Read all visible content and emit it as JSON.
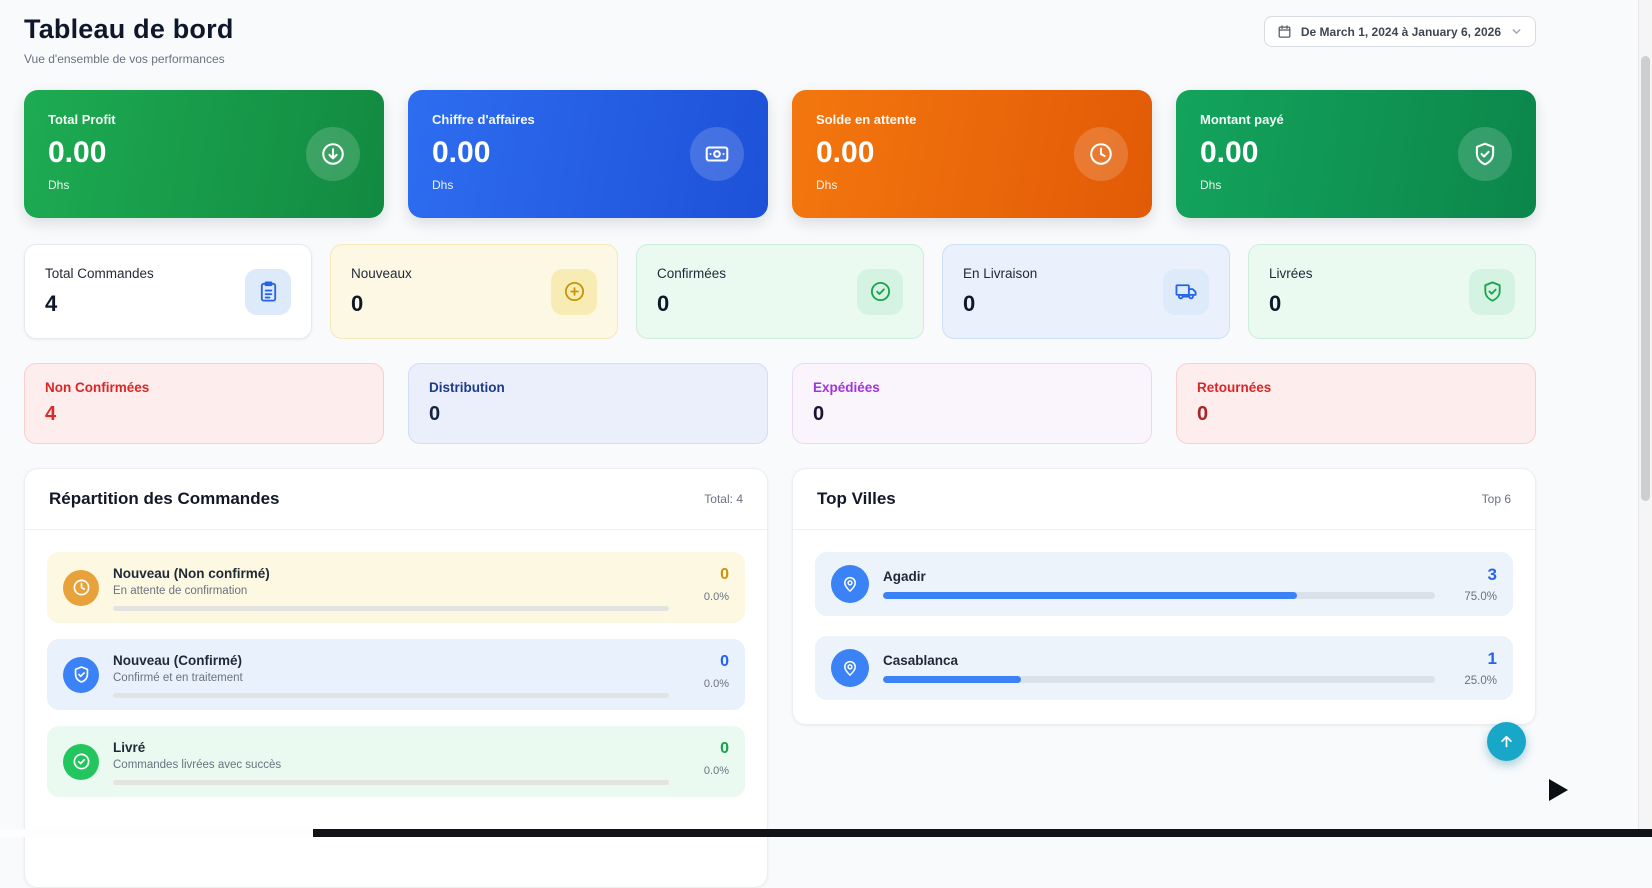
{
  "page": {
    "title": "Tableau de bord",
    "subtitle": "Vue d'ensemble de vos performances"
  },
  "date_filter": {
    "label": "De March 1, 2024 à January 6, 2026"
  },
  "stat_cards": [
    {
      "label": "Total Profit",
      "value": "0.00",
      "currency": "Dhs",
      "icon": "circle-arrow-down-icon",
      "color": "#16a34a"
    },
    {
      "label": "Chiffre d'affaires",
      "value": "0.00",
      "currency": "Dhs",
      "icon": "banknote-icon",
      "color": "#2563eb"
    },
    {
      "label": "Solde en attente",
      "value": "0.00",
      "currency": "Dhs",
      "icon": "clock-icon",
      "color": "#ea6a0c"
    },
    {
      "label": "Montant payé",
      "value": "0.00",
      "currency": "Dhs",
      "icon": "shield-check-icon",
      "color": "#0f9a55"
    }
  ],
  "count_cards": [
    {
      "label": "Total Commandes",
      "value": "4",
      "icon": "clipboard-icon",
      "accent": "#2563eb"
    },
    {
      "label": "Nouveaux",
      "value": "0",
      "icon": "plus-circle-icon",
      "accent": "#c8950a"
    },
    {
      "label": "Confirmées",
      "value": "0",
      "icon": "check-circle-icon",
      "accent": "#17a34a"
    },
    {
      "label": "En Livraison",
      "value": "0",
      "icon": "truck-icon",
      "accent": "#2563eb"
    },
    {
      "label": "Livrées",
      "value": "0",
      "icon": "shield-check-icon",
      "accent": "#17a34a"
    }
  ],
  "status_cards": [
    {
      "label": "Non Confirmées",
      "value": "4",
      "accent": "#dc2626"
    },
    {
      "label": "Distribution",
      "value": "0",
      "accent": "#1e3a8a"
    },
    {
      "label": "Expédiées",
      "value": "0",
      "accent": "#a334d8"
    },
    {
      "label": "Retournées",
      "value": "0",
      "accent": "#dc2626"
    }
  ],
  "orders_panel": {
    "title": "Répartition des Commandes",
    "total_label": "Total: 4",
    "items": [
      {
        "title": "Nouveau (Non confirmé)",
        "subtitle": "En attente de confirmation",
        "count": "0",
        "percent": "0.0%",
        "progress": 0,
        "icon": "clock-icon"
      },
      {
        "title": "Nouveau (Confirmé)",
        "subtitle": "Confirmé et en traitement",
        "count": "0",
        "percent": "0.0%",
        "progress": 0,
        "icon": "shield-check-icon"
      },
      {
        "title": "Livré",
        "subtitle": "Commandes livrées avec succès",
        "count": "0",
        "percent": "0.0%",
        "progress": 0,
        "icon": "check-circle-icon"
      }
    ]
  },
  "cities_panel": {
    "title": "Top Villes",
    "top_label": "Top 6",
    "items": [
      {
        "name": "Agadir",
        "count": "3",
        "percent": "75.0%",
        "progress": 75,
        "icon": "map-pin-icon"
      },
      {
        "name": "Casablanca",
        "count": "1",
        "percent": "25.0%",
        "progress": 25,
        "icon": "map-pin-icon"
      }
    ]
  },
  "colors": {
    "accent_blue": "#3b82f6",
    "danger_red": "#dc2626",
    "fab_teal": "#18a7c9"
  }
}
